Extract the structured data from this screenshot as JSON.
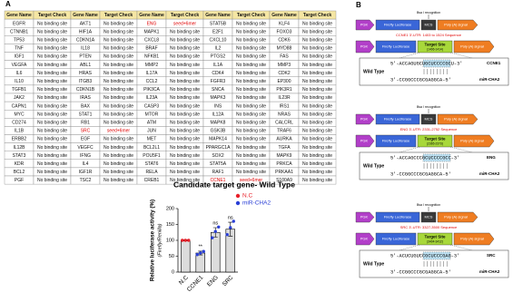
{
  "panel_a": {
    "label": "A",
    "headers": [
      "Gene Name",
      "Target Check",
      "Gene Name",
      "Target Check",
      "Gene Name",
      "Target Check",
      "Gene Name",
      "Target Check",
      "Gene Name",
      "Target Check"
    ],
    "rows": [
      [
        "EGFR",
        "No binding site",
        "AKT1",
        "No binding site",
        "ENG",
        "seed+6mer",
        "STAT5B",
        "No binding site",
        "KLF4",
        "No binding site"
      ],
      [
        "CTNNB1",
        "No binding site",
        "HIF1A",
        "No binding site",
        "MAPK1",
        "No binding site",
        "E2F1",
        "No binding site",
        "FOXO3",
        "No binding site"
      ],
      [
        "TP53",
        "No binding site",
        "CDKN1A",
        "No binding site",
        "CXCL8",
        "No binding site",
        "CXCL10",
        "No binding site",
        "CDK6",
        "No binding site"
      ],
      [
        "TNF",
        "No binding site",
        "IL18",
        "No binding site",
        "BRAF",
        "No binding site",
        "IL2",
        "No binding site",
        "MYD88",
        "No binding site"
      ],
      [
        "IGF1",
        "No binding site",
        "PTEN",
        "No binding site",
        "NFKB1",
        "No binding site",
        "PTGS2",
        "No binding site",
        "FAS",
        "No binding site"
      ],
      [
        "VEGFA",
        "No binding site",
        "ABL1",
        "No binding site",
        "MMP2",
        "No binding site",
        "IL1A",
        "No binding site",
        "MMP3",
        "No binding site"
      ],
      [
        "IL6",
        "No binding site",
        "HRAS",
        "No binding site",
        "IL17A",
        "No binding site",
        "CDK4",
        "No binding site",
        "CDK2",
        "No binding site"
      ],
      [
        "IL10",
        "No binding site",
        "ITGB3",
        "No binding site",
        "CCL2",
        "No binding site",
        "FGFR3",
        "No binding site",
        "EP300",
        "No binding site"
      ],
      [
        "TGFB1",
        "No binding site",
        "CDKN1B",
        "No binding site",
        "PIK3CA",
        "No binding site",
        "SNCA",
        "No binding site",
        "PIK3R1",
        "No binding site"
      ],
      [
        "JAK2",
        "No binding site",
        "IRAS",
        "No binding site",
        "IL23A",
        "No binding site",
        "MAPK3",
        "No binding site",
        "IL23R",
        "No binding site"
      ],
      [
        "CAPN1",
        "No binding site",
        "BAX",
        "No binding site",
        "CASP3",
        "No binding site",
        "INS",
        "No binding site",
        "IRS1",
        "No binding site"
      ],
      [
        "MYC",
        "No binding site",
        "STAT1",
        "No binding site",
        "MTOR",
        "No binding site",
        "IL12A",
        "No binding site",
        "NRAS",
        "No binding site"
      ],
      [
        "CD274",
        "No binding site",
        "RB1",
        "No binding site",
        "ATM",
        "No binding site",
        "MAPK8",
        "No binding site",
        "CALCRL",
        "No binding site"
      ],
      [
        "IL1B",
        "No binding site",
        "SRC",
        "seed+6mer",
        "JUN",
        "No binding site",
        "GSK3B",
        "No binding site",
        "TRAF6",
        "No binding site"
      ],
      [
        "ERBB2",
        "No binding site",
        "EGF",
        "No binding site",
        "MET",
        "No binding site",
        "MAPK14",
        "No binding site",
        "AURKA",
        "No binding site"
      ],
      [
        "IL12B",
        "No binding site",
        "VEGFC",
        "No binding site",
        "BCL2L1",
        "No binding site",
        "PPARGC1A",
        "No binding site",
        "TGFA",
        "No binding site"
      ],
      [
        "STAT3",
        "No binding site",
        "IFNG",
        "No binding site",
        "POU5F1",
        "No binding site",
        "SOX2",
        "No binding site",
        "MAPK9",
        "No binding site"
      ],
      [
        "KDR",
        "No binding site",
        "IL4",
        "No binding site",
        "STAT6",
        "No binding site",
        "STAT5A",
        "No binding site",
        "PRKCA",
        "No binding site"
      ],
      [
        "BCL2",
        "No binding site",
        "IGF1R",
        "No binding site",
        "RELA",
        "No binding site",
        "RAF1",
        "No binding site",
        "PRKAA1",
        "No binding site"
      ],
      [
        "PGF",
        "No binding site",
        "TSC2",
        "No binding site",
        "CREB1",
        "No binding site",
        "CCNE1",
        "seed+6mer",
        "S100A9",
        "No binding site"
      ]
    ]
  },
  "panel_b": {
    "label": "B",
    "constructs": [
      {
        "recognition": "Bsa I recognition",
        "promoter": "PGK",
        "reporter": "Firefly Luciferase",
        "mcs": "MCS",
        "polya": "Poly (A) signal",
        "utr": "CCNE1 3'-UTR: 1403 to 1524 Sequence",
        "target": "Target Site",
        "target_range": "(1406-1414)",
        "seq5": "5'-ACCAGUGCUGCUCCCCGCU-3'",
        "gene": "CCNE1",
        "wild_type": "Wild Type",
        "seq3": "3'-CCGGCCCGCGAGGCA-5'",
        "mirna": "miR-CHA2"
      },
      {
        "recognition": "Bsa I recognition",
        "promoter": "PGK",
        "reporter": "Firefly Luciferase",
        "mcs": "MCS",
        "polya": "Poly (A) signal",
        "utr": "ENG 3'-UTR: 2331-2752 Sequence",
        "target": "Target Site",
        "target_range": "(2365-2373)",
        "seq5": "5'-ACCAGCCCGCUCCCCGCC-3'",
        "gene": "ENG",
        "wild_type": "Wild Type",
        "seq3": "3'-CCGGCCCGCGAGGCA-5'",
        "mirna": "miR-CHA2"
      },
      {
        "recognition": "Bsa I recognition",
        "promoter": "PGK",
        "reporter": "Firefly Luciferase",
        "mcs": "MCS",
        "polya": "Poly (A) signal",
        "utr": "SRC 3'-UTR: 3327-3500 Sequence",
        "target": "Target Site",
        "target_range": "(3404-3412)",
        "seq5": "5'-ACUCUGUCCGCUCCCGAG-3'",
        "gene": "SRC",
        "wild_type": "Wild Type",
        "seq3": "3'-CCGGCCCGCGAGGCA-5'",
        "mirna": "miR-CHA2"
      }
    ]
  },
  "chart_data": {
    "type": "bar",
    "label": "C",
    "title": "Candidate target gene- Wild Type",
    "y_label": "Relative luciferase activity (%)",
    "y_sublabel": "(Firefly/Renilla)",
    "categories": [
      "N.C",
      "CCNE1",
      "ENG",
      "SRC"
    ],
    "values": [
      100,
      60,
      125,
      135
    ],
    "errors": [
      2,
      6,
      15,
      22
    ],
    "points": [
      [
        100,
        100,
        100
      ],
      [
        55,
        60,
        65
      ],
      [
        108,
        128,
        142
      ],
      [
        118,
        140,
        160
      ]
    ],
    "significance": [
      null,
      "**",
      "ns",
      "ns"
    ],
    "color": "#dcdcdc",
    "legend": [
      {
        "name": "N.C",
        "color": "#e8202a"
      },
      {
        "name": "miR-CHA2",
        "color": "#2a3fd6"
      }
    ],
    "ylim": [
      0,
      200
    ],
    "yticks": [
      0,
      50,
      100,
      150,
      200
    ]
  }
}
